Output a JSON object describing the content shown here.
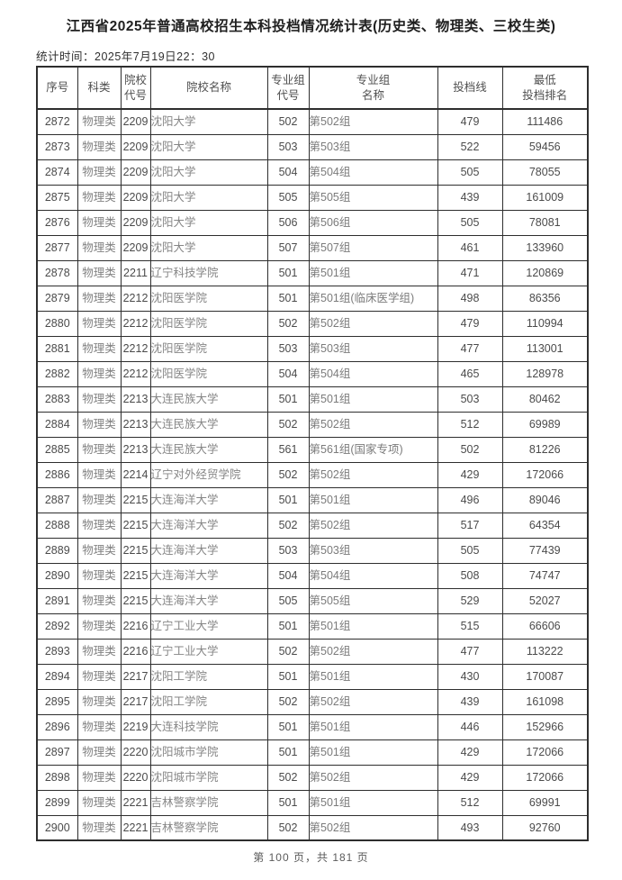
{
  "page": {
    "title": "江西省2025年普通高校招生本科投档情况统计表(历史类、物理类、三校生类)",
    "stat_time": "统计时间：2025年7月19日22：30",
    "footer": "第 100 页，共 181 页"
  },
  "table": {
    "col_keys": [
      "seq",
      "subject-category",
      "college-code",
      "college-name",
      "group-code",
      "group-name",
      "cutoff-score",
      "min-rank"
    ],
    "headers": [
      "序号",
      "科类",
      "院校\n代号",
      "院校名称",
      "专业组\n代号",
      "专业组\n名称",
      "投档线",
      "最低\n投档排名"
    ],
    "rows": [
      [
        "2872",
        "物理类",
        "2209",
        "沈阳大学",
        "502",
        "第502组",
        "479",
        "111486"
      ],
      [
        "2873",
        "物理类",
        "2209",
        "沈阳大学",
        "503",
        "第503组",
        "522",
        "59456"
      ],
      [
        "2874",
        "物理类",
        "2209",
        "沈阳大学",
        "504",
        "第504组",
        "505",
        "78055"
      ],
      [
        "2875",
        "物理类",
        "2209",
        "沈阳大学",
        "505",
        "第505组",
        "439",
        "161009"
      ],
      [
        "2876",
        "物理类",
        "2209",
        "沈阳大学",
        "506",
        "第506组",
        "505",
        "78081"
      ],
      [
        "2877",
        "物理类",
        "2209",
        "沈阳大学",
        "507",
        "第507组",
        "461",
        "133960"
      ],
      [
        "2878",
        "物理类",
        "2211",
        "辽宁科技学院",
        "501",
        "第501组",
        "471",
        "120869"
      ],
      [
        "2879",
        "物理类",
        "2212",
        "沈阳医学院",
        "501",
        "第501组(临床医学组)",
        "498",
        "86356"
      ],
      [
        "2880",
        "物理类",
        "2212",
        "沈阳医学院",
        "502",
        "第502组",
        "479",
        "110994"
      ],
      [
        "2881",
        "物理类",
        "2212",
        "沈阳医学院",
        "503",
        "第503组",
        "477",
        "113001"
      ],
      [
        "2882",
        "物理类",
        "2212",
        "沈阳医学院",
        "504",
        "第504组",
        "465",
        "128978"
      ],
      [
        "2883",
        "物理类",
        "2213",
        "大连民族大学",
        "501",
        "第501组",
        "503",
        "80462"
      ],
      [
        "2884",
        "物理类",
        "2213",
        "大连民族大学",
        "502",
        "第502组",
        "512",
        "69989"
      ],
      [
        "2885",
        "物理类",
        "2213",
        "大连民族大学",
        "561",
        "第561组(国家专项)",
        "502",
        "81226"
      ],
      [
        "2886",
        "物理类",
        "2214",
        "辽宁对外经贸学院",
        "502",
        "第502组",
        "429",
        "172066"
      ],
      [
        "2887",
        "物理类",
        "2215",
        "大连海洋大学",
        "501",
        "第501组",
        "496",
        "89046"
      ],
      [
        "2888",
        "物理类",
        "2215",
        "大连海洋大学",
        "502",
        "第502组",
        "517",
        "64354"
      ],
      [
        "2889",
        "物理类",
        "2215",
        "大连海洋大学",
        "503",
        "第503组",
        "505",
        "77439"
      ],
      [
        "2890",
        "物理类",
        "2215",
        "大连海洋大学",
        "504",
        "第504组",
        "508",
        "74747"
      ],
      [
        "2891",
        "物理类",
        "2215",
        "大连海洋大学",
        "505",
        "第505组",
        "529",
        "52027"
      ],
      [
        "2892",
        "物理类",
        "2216",
        "辽宁工业大学",
        "501",
        "第501组",
        "515",
        "66606"
      ],
      [
        "2893",
        "物理类",
        "2216",
        "辽宁工业大学",
        "502",
        "第502组",
        "477",
        "113222"
      ],
      [
        "2894",
        "物理类",
        "2217",
        "沈阳工学院",
        "501",
        "第501组",
        "430",
        "170087"
      ],
      [
        "2895",
        "物理类",
        "2217",
        "沈阳工学院",
        "502",
        "第502组",
        "439",
        "161098"
      ],
      [
        "2896",
        "物理类",
        "2219",
        "大连科技学院",
        "501",
        "第501组",
        "446",
        "152966"
      ],
      [
        "2897",
        "物理类",
        "2220",
        "沈阳城市学院",
        "501",
        "第501组",
        "429",
        "172066"
      ],
      [
        "2898",
        "物理类",
        "2220",
        "沈阳城市学院",
        "502",
        "第502组",
        "429",
        "172066"
      ],
      [
        "2899",
        "物理类",
        "2221",
        "吉林警察学院",
        "501",
        "第501组",
        "512",
        "69991"
      ],
      [
        "2900",
        "物理类",
        "2221",
        "吉林警察学院",
        "502",
        "第502组",
        "493",
        "92760"
      ]
    ]
  }
}
